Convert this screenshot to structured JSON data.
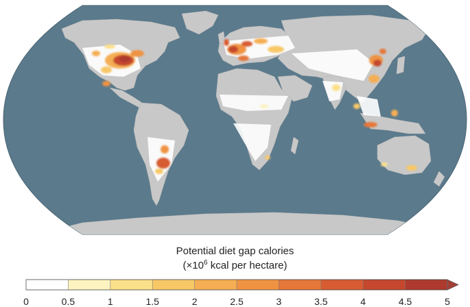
{
  "legend": {
    "title_line1": "Potential diet gap calories",
    "title_line2_prefix": "(×10",
    "title_line2_exponent": "6",
    "title_line2_suffix": " kcal per hectare)",
    "tick_labels": [
      "0",
      "0.5",
      "1",
      "1.5",
      "2",
      "2.5",
      "3",
      "3.5",
      "4",
      "4.5",
      "5"
    ],
    "colors": [
      "#ffffff",
      "#fdf3c0",
      "#fbe08a",
      "#f8c867",
      "#f5ae53",
      "#ef9342",
      "#e6773a",
      "#d75c32",
      "#c4472e",
      "#ae3a2d"
    ],
    "overflow_color": "#a34036"
  },
  "map": {
    "ocean_color": "#5b7a8c",
    "land_no_data_color": "#c8c8c8",
    "cropland_low_color": "#ffffff"
  }
}
